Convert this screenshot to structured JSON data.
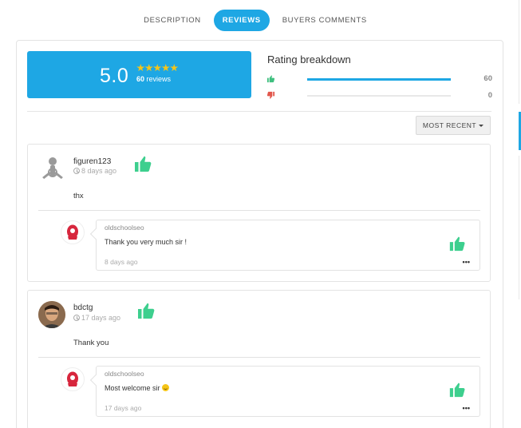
{
  "tabs": [
    {
      "label": "DESCRIPTION",
      "active": false
    },
    {
      "label": "REVIEWS",
      "active": true
    },
    {
      "label": "BUYERS COMMENTS",
      "active": false
    }
  ],
  "summary": {
    "score": "5.0",
    "stars": 5,
    "reviews_count": "60",
    "reviews_label": "reviews"
  },
  "breakdown": {
    "title": "Rating breakdown",
    "rows": [
      {
        "icon": "thumbs-up-icon",
        "count": "60",
        "fraction": 1.0,
        "color": "#3fbf7f"
      },
      {
        "icon": "thumbs-down-icon",
        "count": "0",
        "fraction": 0.0,
        "color": "#e2574c"
      }
    ]
  },
  "sort": {
    "label": "MOST RECENT"
  },
  "colors": {
    "accent": "#1ea7e4",
    "like": "#3dcf8e"
  },
  "reviews": [
    {
      "user": "figuren123",
      "time": "8 days ago",
      "text": "thx",
      "reply": {
        "user": "oldschoolseo",
        "text": "Thank you very much sir !",
        "time": "8 days ago",
        "menu": "•••"
      }
    },
    {
      "user": "bdctg",
      "time": "17 days ago",
      "text": "Thank you",
      "reply": {
        "user": "oldschoolseo",
        "text": "Most welcome sir",
        "time": "17 days ago",
        "menu": "•••"
      }
    }
  ]
}
